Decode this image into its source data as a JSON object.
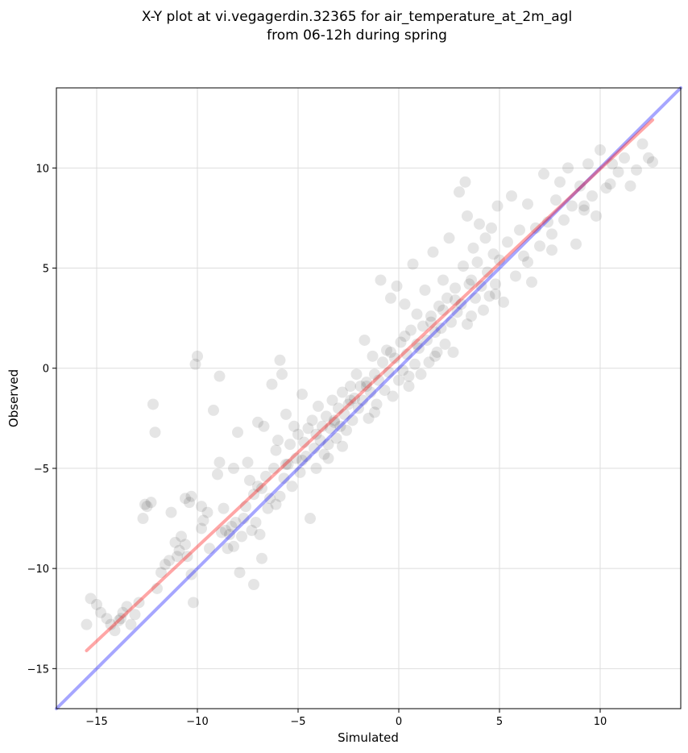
{
  "chart_data": {
    "type": "scatter",
    "title_lines": [
      "X-Y plot at vi.vegagerdin.32365 for air_temperature_at_2m_agl",
      "from 06-12h during spring"
    ],
    "xlabel": "Simulated",
    "ylabel": "Observed",
    "xlim": [
      -17,
      14
    ],
    "ylim": [
      -17,
      14
    ],
    "xticks": [
      -15,
      -10,
      -5,
      0,
      5,
      10
    ],
    "yticks": [
      -15,
      -10,
      -5,
      0,
      5,
      10
    ],
    "xtick_labels": [
      "−15",
      "−10",
      "−5",
      "0",
      "5",
      "10"
    ],
    "ytick_labels": [
      "−15",
      "−10",
      "−5",
      "0",
      "5",
      "10"
    ],
    "grid": true,
    "legend": "none",
    "colors": {
      "points": "#000000",
      "identity_line": "#0000ff",
      "fit_line": "#ff0000",
      "grid": "#dddddd"
    },
    "series": [
      {
        "kind": "line",
        "role": "identity",
        "x": [
          -17,
          14
        ],
        "y": [
          -17,
          14
        ]
      },
      {
        "kind": "line",
        "role": "regression-fit",
        "x": [
          -15.5,
          12.6
        ],
        "y": [
          -14.1,
          12.4
        ]
      },
      {
        "kind": "scatter",
        "role": "observations",
        "points": [
          [
            -15.5,
            -12.8
          ],
          [
            -15.3,
            -11.5
          ],
          [
            -15.0,
            -11.8
          ],
          [
            -14.8,
            -12.2
          ],
          [
            -14.5,
            -12.5
          ],
          [
            -14.3,
            -12.8
          ],
          [
            -14.1,
            -13.1
          ],
          [
            -13.9,
            -12.6
          ],
          [
            -13.7,
            -12.2
          ],
          [
            -13.5,
            -11.9
          ],
          [
            -13.3,
            -12.8
          ],
          [
            -13.1,
            -12.3
          ],
          [
            -12.9,
            -11.7
          ],
          [
            -12.7,
            -7.5
          ],
          [
            -12.5,
            -6.9
          ],
          [
            -12.3,
            -6.7
          ],
          [
            -12.2,
            -1.8
          ],
          [
            -12.1,
            -3.2
          ],
          [
            -12.0,
            -11.0
          ],
          [
            -11.8,
            -10.2
          ],
          [
            -11.6,
            -9.8
          ],
          [
            -11.4,
            -9.6
          ],
          [
            -11.3,
            -7.2
          ],
          [
            -11.1,
            -8.7
          ],
          [
            -10.9,
            -9.1
          ],
          [
            -10.8,
            -8.4
          ],
          [
            -10.6,
            -8.8
          ],
          [
            -10.5,
            -9.4
          ],
          [
            -10.3,
            -10.3
          ],
          [
            -10.2,
            -11.7
          ],
          [
            -10.1,
            0.2
          ],
          [
            -10.0,
            0.6
          ],
          [
            -10.3,
            -6.4
          ],
          [
            -10.4,
            -6.7
          ],
          [
            -9.8,
            -8.0
          ],
          [
            -9.7,
            -7.6
          ],
          [
            -9.5,
            -7.2
          ],
          [
            -9.4,
            -9.0
          ],
          [
            -9.2,
            -2.1
          ],
          [
            -9.0,
            -5.3
          ],
          [
            -8.9,
            -0.4
          ],
          [
            -8.9,
            -4.7
          ],
          [
            -8.7,
            -7.0
          ],
          [
            -8.6,
            -8.1
          ],
          [
            -8.5,
            -9.0
          ],
          [
            -8.4,
            -8.3
          ],
          [
            -8.3,
            -7.9
          ],
          [
            -8.2,
            -5.0
          ],
          [
            -8.1,
            -7.7
          ],
          [
            -8.0,
            -3.2
          ],
          [
            -7.9,
            -10.2
          ],
          [
            -7.8,
            -8.4
          ],
          [
            -7.7,
            -7.5
          ],
          [
            -7.6,
            -6.9
          ],
          [
            -7.5,
            -4.7
          ],
          [
            -7.4,
            -5.6
          ],
          [
            -7.3,
            -8.1
          ],
          [
            -7.2,
            -6.3
          ],
          [
            -7.1,
            -7.7
          ],
          [
            -7.0,
            -2.7
          ],
          [
            -6.9,
            -8.3
          ],
          [
            -6.8,
            -6.0
          ],
          [
            -6.7,
            -2.9
          ],
          [
            -6.6,
            -5.4
          ],
          [
            -6.5,
            -7.0
          ],
          [
            -6.4,
            -6.5
          ],
          [
            -6.3,
            -0.8
          ],
          [
            -6.2,
            -5.0
          ],
          [
            -6.1,
            -4.1
          ],
          [
            -6.0,
            -3.6
          ],
          [
            -5.9,
            0.4
          ],
          [
            -5.9,
            -6.4
          ],
          [
            -5.8,
            -0.3
          ],
          [
            -5.7,
            -5.5
          ],
          [
            -5.6,
            -2.3
          ],
          [
            -5.5,
            -4.8
          ],
          [
            -5.4,
            -3.8
          ],
          [
            -5.3,
            -5.9
          ],
          [
            -5.2,
            -2.9
          ],
          [
            -5.1,
            -4.5
          ],
          [
            -5.0,
            -3.3
          ],
          [
            -4.9,
            -5.2
          ],
          [
            -4.8,
            -1.3
          ],
          [
            -4.7,
            -3.7
          ],
          [
            -4.6,
            -4.4
          ],
          [
            -4.5,
            -3.0
          ],
          [
            -4.4,
            -7.5
          ],
          [
            -4.3,
            -2.6
          ],
          [
            -4.2,
            -4.0
          ],
          [
            -4.1,
            -3.3
          ],
          [
            -4.0,
            -1.9
          ],
          [
            -3.9,
            -3.6
          ],
          [
            -3.8,
            -2.9
          ],
          [
            -3.7,
            -4.3
          ],
          [
            -3.6,
            -2.4
          ],
          [
            -3.5,
            -3.8
          ],
          [
            -3.4,
            -3.0
          ],
          [
            -3.3,
            -1.6
          ],
          [
            -3.2,
            -2.6
          ],
          [
            -3.1,
            -3.5
          ],
          [
            -3.0,
            -2.0
          ],
          [
            -2.9,
            -2.9
          ],
          [
            -2.8,
            -1.2
          ],
          [
            -2.7,
            -2.3
          ],
          [
            -2.6,
            -3.1
          ],
          [
            -2.5,
            -1.8
          ],
          [
            -2.4,
            -0.9
          ],
          [
            -2.3,
            -2.6
          ],
          [
            -2.2,
            -1.5
          ],
          [
            -2.1,
            -0.3
          ],
          [
            -2.0,
            -2.0
          ],
          [
            -1.9,
            -0.9
          ],
          [
            -1.8,
            -1.6
          ],
          [
            -1.7,
            1.4
          ],
          [
            -1.6,
            -0.7
          ],
          [
            -1.5,
            -2.5
          ],
          [
            -1.4,
            -1.2
          ],
          [
            -1.3,
            0.6
          ],
          [
            -1.2,
            -0.3
          ],
          [
            -1.1,
            -1.8
          ],
          [
            -1.0,
            -0.6
          ],
          [
            -0.9,
            4.4
          ],
          [
            -0.8,
            0.3
          ],
          [
            -0.7,
            -1.1
          ],
          [
            -0.6,
            0.9
          ],
          [
            -0.5,
            -0.2
          ],
          [
            -0.4,
            3.5
          ],
          [
            -0.3,
            -1.4
          ],
          [
            -0.2,
            0.5
          ],
          [
            -0.1,
            4.1
          ],
          [
            0.0,
            -0.6
          ],
          [
            0.1,
            1.3
          ],
          [
            0.2,
            -0.1
          ],
          [
            0.3,
            3.2
          ],
          [
            0.4,
            0.7
          ],
          [
            0.5,
            -0.9
          ],
          [
            0.6,
            1.9
          ],
          [
            0.7,
            5.2
          ],
          [
            0.8,
            0.2
          ],
          [
            0.9,
            2.7
          ],
          [
            1.0,
            1.0
          ],
          [
            1.1,
            -0.3
          ],
          [
            1.2,
            2.1
          ],
          [
            1.3,
            3.9
          ],
          [
            1.4,
            1.4
          ],
          [
            1.5,
            0.3
          ],
          [
            1.6,
            2.6
          ],
          [
            1.7,
            5.8
          ],
          [
            1.8,
            1.8
          ],
          [
            1.9,
            0.8
          ],
          [
            2.0,
            3.1
          ],
          [
            2.1,
            2.0
          ],
          [
            2.2,
            4.4
          ],
          [
            2.3,
            1.2
          ],
          [
            2.4,
            3.5
          ],
          [
            2.5,
            6.5
          ],
          [
            2.6,
            2.3
          ],
          [
            2.7,
            0.8
          ],
          [
            2.8,
            4.0
          ],
          [
            2.9,
            2.8
          ],
          [
            3.0,
            8.8
          ],
          [
            3.1,
            3.2
          ],
          [
            3.2,
            5.1
          ],
          [
            3.3,
            9.3
          ],
          [
            3.4,
            7.6
          ],
          [
            3.5,
            4.2
          ],
          [
            3.6,
            2.6
          ],
          [
            3.7,
            6.0
          ],
          [
            3.8,
            3.5
          ],
          [
            3.9,
            5.3
          ],
          [
            4.0,
            7.2
          ],
          [
            4.1,
            4.1
          ],
          [
            4.2,
            2.9
          ],
          [
            4.3,
            6.5
          ],
          [
            4.4,
            4.8
          ],
          [
            4.5,
            3.6
          ],
          [
            4.6,
            7.0
          ],
          [
            4.7,
            5.7
          ],
          [
            4.8,
            4.2
          ],
          [
            4.9,
            8.1
          ],
          [
            5.0,
            5.4
          ],
          [
            5.2,
            3.3
          ],
          [
            5.4,
            6.3
          ],
          [
            5.6,
            8.6
          ],
          [
            5.8,
            4.6
          ],
          [
            6.0,
            6.9
          ],
          [
            6.2,
            5.6
          ],
          [
            6.4,
            8.2
          ],
          [
            6.6,
            4.3
          ],
          [
            6.8,
            7.0
          ],
          [
            7.0,
            6.1
          ],
          [
            7.2,
            9.7
          ],
          [
            7.4,
            7.3
          ],
          [
            7.6,
            5.9
          ],
          [
            7.8,
            8.4
          ],
          [
            8.0,
            9.3
          ],
          [
            8.2,
            7.4
          ],
          [
            8.4,
            10.0
          ],
          [
            8.6,
            8.1
          ],
          [
            8.8,
            6.2
          ],
          [
            9.0,
            9.1
          ],
          [
            9.2,
            8.1
          ],
          [
            9.4,
            10.2
          ],
          [
            9.6,
            8.6
          ],
          [
            9.8,
            7.6
          ],
          [
            10.0,
            10.9
          ],
          [
            10.3,
            9.0
          ],
          [
            10.6,
            10.2
          ],
          [
            10.9,
            9.8
          ],
          [
            11.2,
            10.5
          ],
          [
            11.5,
            9.1
          ],
          [
            11.8,
            9.9
          ],
          [
            12.1,
            11.2
          ],
          [
            12.4,
            10.5
          ],
          [
            12.6,
            10.3
          ],
          [
            -9.8,
            -6.9
          ],
          [
            -10.6,
            -6.5
          ],
          [
            -7.2,
            -10.8
          ],
          [
            -4.1,
            -5.0
          ],
          [
            -6.8,
            -9.5
          ],
          [
            -12.6,
            -6.8
          ],
          [
            -13.8,
            -12.5
          ],
          [
            -8.2,
            -8.9
          ],
          [
            -6.1,
            -6.8
          ],
          [
            -3.5,
            -4.5
          ],
          [
            -2.8,
            -3.9
          ],
          [
            -1.2,
            -2.2
          ],
          [
            0.5,
            -0.4
          ],
          [
            1.8,
            0.6
          ],
          [
            3.4,
            2.2
          ],
          [
            4.8,
            3.7
          ],
          [
            6.4,
            5.3
          ],
          [
            7.6,
            6.7
          ],
          [
            9.2,
            7.9
          ],
          [
            10.5,
            9.2
          ],
          [
            -0.4,
            0.8
          ],
          [
            0.3,
            1.6
          ],
          [
            0.9,
            1.2
          ],
          [
            1.6,
            2.3
          ],
          [
            2.2,
            2.9
          ],
          [
            2.8,
            3.4
          ],
          [
            3.6,
            4.4
          ],
          [
            -1.6,
            -0.9
          ],
          [
            -2.4,
            -1.6
          ],
          [
            -3.2,
            -2.7
          ],
          [
            -4.8,
            -4.6
          ],
          [
            -5.6,
            -4.8
          ],
          [
            -7.0,
            -5.9
          ],
          [
            -8.8,
            -8.2
          ],
          [
            -11.0,
            -9.4
          ]
        ]
      }
    ]
  }
}
